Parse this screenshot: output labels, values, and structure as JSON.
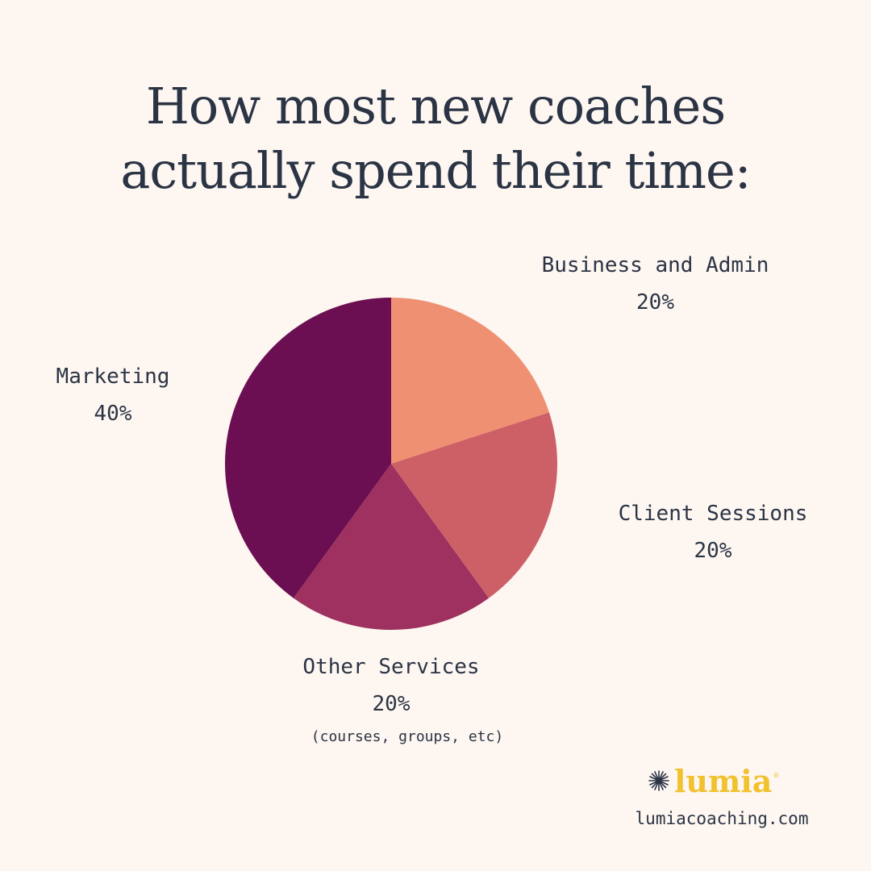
{
  "title_lines": [
    "How most new coaches",
    "actually spend their time:"
  ],
  "chart_data": {
    "type": "pie",
    "title": "How most new coaches actually spend their time:",
    "slices": [
      {
        "label": "Business and Admin",
        "value": 20,
        "display": "20%",
        "color": "#ef9072"
      },
      {
        "label": "Client Sessions",
        "value": 20,
        "display": "20%",
        "color": "#cd6067"
      },
      {
        "label": "Other Services",
        "value": 20,
        "display": "20%",
        "note": "(courses, groups, etc)",
        "color": "#9e315f"
      },
      {
        "label": "Marketing",
        "value": 40,
        "display": "40%",
        "color": "#6b0f52"
      }
    ]
  },
  "brand": {
    "name": "lumia",
    "trademark": "®",
    "icon": "starburst-icon",
    "color": "#f2c12e",
    "website": "lumiacoaching.com"
  }
}
